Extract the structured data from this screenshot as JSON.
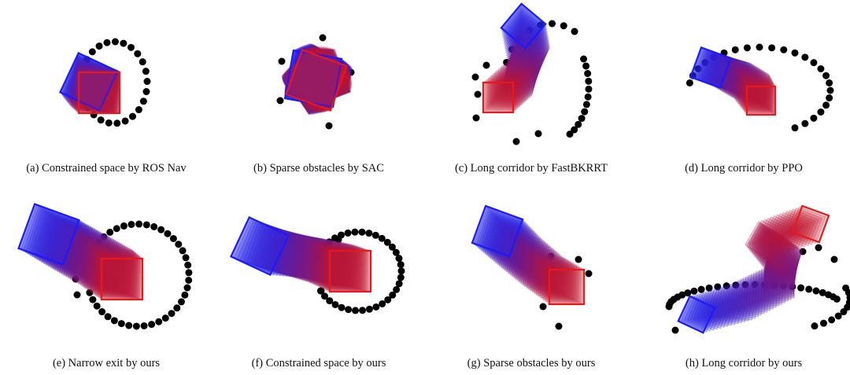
{
  "panels": [
    {
      "caption": "(a) Constrained space by ROS Nav"
    },
    {
      "caption": "(b) Sparse obstacles by SAC"
    },
    {
      "caption": "(c) Long corridor by FastBKRRT"
    },
    {
      "caption": "(d) Long corridor by PPO"
    },
    {
      "caption": "(e) Narrow exit by ours"
    },
    {
      "caption": "(f) Constrained space by ours"
    },
    {
      "caption": "(g) Sparse obstacles by ours"
    },
    {
      "caption": "(h) Long corridor by ours"
    }
  ]
}
